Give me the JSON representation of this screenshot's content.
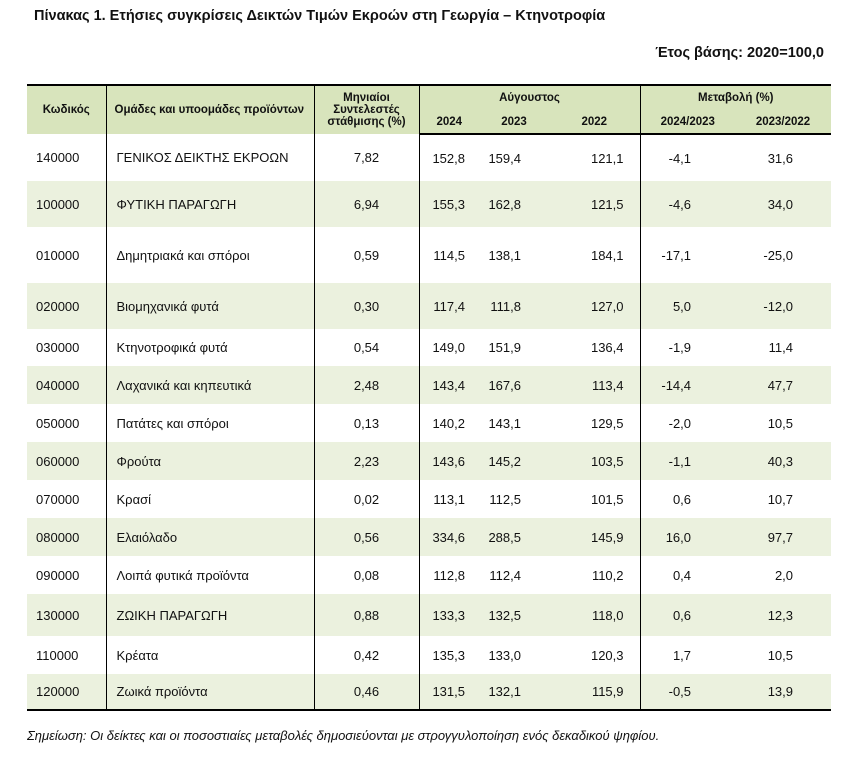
{
  "title": "Πίνακας 1. Ετήσιες συγκρίσεις Δεικτών Τιμών Εκροών στη Γεωργία – Κτηνοτροφία",
  "base_year": "Έτος βάσης: 2020=100,0",
  "headers": {
    "code": "Κωδικός",
    "group": "Ομάδες και υποομάδες προϊόντων",
    "weight": "Μηνιαίοι Συντελεστές στάθμισης (%)",
    "august": "Αύγουστος",
    "y2024": "2024",
    "y2023": "2023",
    "y2022": "2022",
    "change": "Μεταβολή (%)",
    "ch1": "2024/2023",
    "ch2": "2023/2022"
  },
  "rows": [
    {
      "code": "140000",
      "name": "ΓΕΝΙΚΟΣ ΔΕΙΚΤΗΣ ΕΚΡΟΩΝ",
      "weight": "7,82",
      "y2024": "152,8",
      "y2023": "159,4",
      "y2022": "121,1",
      "ch1": "-4,1",
      "ch2": "31,6"
    },
    {
      "code": "100000",
      "name": "ΦΥΤΙΚΗ ΠΑΡΑΓΩΓΗ",
      "weight": "6,94",
      "y2024": "155,3",
      "y2023": "162,8",
      "y2022": "121,5",
      "ch1": "-4,6",
      "ch2": "34,0"
    },
    {
      "code": "010000",
      "name": "Δημητριακά και σπόροι",
      "weight": "0,59",
      "y2024": "114,5",
      "y2023": "138,1",
      "y2022": "184,1",
      "ch1": "-17,1",
      "ch2": "-25,0"
    },
    {
      "code": "020000",
      "name": "Βιομηχανικά φυτά",
      "weight": "0,30",
      "y2024": "117,4",
      "y2023": "111,8",
      "y2022": "127,0",
      "ch1": "5,0",
      "ch2": "-12,0"
    },
    {
      "code": "030000",
      "name": "Κτηνοτροφικά φυτά",
      "weight": "0,54",
      "y2024": "149,0",
      "y2023": "151,9",
      "y2022": "136,4",
      "ch1": "-1,9",
      "ch2": "11,4"
    },
    {
      "code": "040000",
      "name": "Λαχανικά και κηπευτικά",
      "weight": "2,48",
      "y2024": "143,4",
      "y2023": "167,6",
      "y2022": "113,4",
      "ch1": "-14,4",
      "ch2": "47,7"
    },
    {
      "code": "050000",
      "name": "Πατάτες και σπόροι",
      "weight": "0,13",
      "y2024": "140,2",
      "y2023": "143,1",
      "y2022": "129,5",
      "ch1": "-2,0",
      "ch2": "10,5"
    },
    {
      "code": "060000",
      "name": "Φρούτα",
      "weight": "2,23",
      "y2024": "143,6",
      "y2023": "145,2",
      "y2022": "103,5",
      "ch1": "-1,1",
      "ch2": "40,3"
    },
    {
      "code": "070000",
      "name": "Κρασί",
      "weight": "0,02",
      "y2024": "113,1",
      "y2023": "112,5",
      "y2022": "101,5",
      "ch1": "0,6",
      "ch2": "10,7"
    },
    {
      "code": "080000",
      "name": "Ελαιόλαδο",
      "weight": "0,56",
      "y2024": "334,6",
      "y2023": "288,5",
      "y2022": "145,9",
      "ch1": "16,0",
      "ch2": "97,7"
    },
    {
      "code": "090000",
      "name": "Λοιπά φυτικά προϊόντα",
      "weight": "0,08",
      "y2024": "112,8",
      "y2023": "112,4",
      "y2022": "110,2",
      "ch1": "0,4",
      "ch2": "2,0"
    },
    {
      "code": "130000",
      "name": "ΖΩΙΚΗ ΠΑΡΑΓΩΓΗ",
      "weight": "0,88",
      "y2024": "133,3",
      "y2023": "132,5",
      "y2022": "118,0",
      "ch1": "0,6",
      "ch2": "12,3"
    },
    {
      "code": "110000",
      "name": "Κρέατα",
      "weight": "0,42",
      "y2024": "135,3",
      "y2023": "133,0",
      "y2022": "120,3",
      "ch1": "1,7",
      "ch2": "10,5"
    },
    {
      "code": "120000",
      "name": "Ζωικά προϊόντα",
      "weight": "0,46",
      "y2024": "131,5",
      "y2023": "132,1",
      "y2022": "115,9",
      "ch1": "-0,5",
      "ch2": "13,9"
    }
  ],
  "note": "Σημείωση: Οι δείκτες και οι ποσοστιαίες μεταβολές δημοσιεύονται με στρογγυλοποίηση ενός δεκαδικού ψηφίου.",
  "colors": {
    "header_bg": "#d8e4bc",
    "stripe_bg": "#ebf1de"
  }
}
